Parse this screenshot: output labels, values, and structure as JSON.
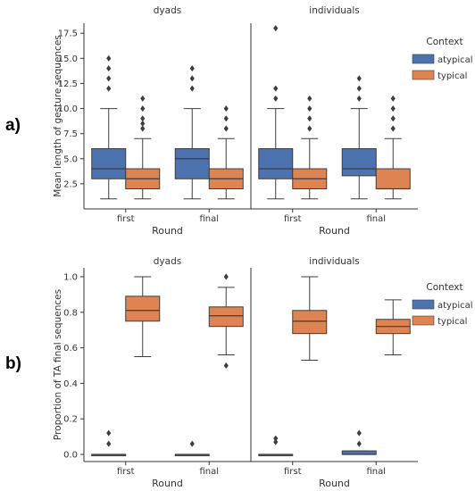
{
  "figure": {
    "letters": [
      "a)",
      "b)"
    ],
    "palette": {
      "atypical": "#4c72b0",
      "typical": "#dd8452",
      "edge": "#3d3d3d"
    }
  },
  "chart_data": [
    {
      "type": "box",
      "panel_label": "a)",
      "facets": [
        "dyads",
        "individuals"
      ],
      "categories": [
        "first",
        "final"
      ],
      "xlabel": "Round",
      "ylabel": "Mean length of gesture sequences",
      "ylim": [
        0,
        18.5
      ],
      "yticks": [
        "2.5",
        "5.0",
        "7.5",
        "10.0",
        "12.5",
        "15.0",
        "17.5"
      ],
      "legend": {
        "title": "Context",
        "entries": [
          "atypical",
          "typical"
        ],
        "placement": "right"
      },
      "series": [
        {
          "name": "atypical",
          "boxes": [
            {
              "facet": "dyads",
              "category": "first",
              "whislo": 1,
              "q1": 3,
              "med": 4,
              "q3": 6,
              "whishi": 10,
              "fliers": [
                12,
                13,
                14,
                15
              ]
            },
            {
              "facet": "dyads",
              "category": "final",
              "whislo": 1,
              "q1": 3,
              "med": 5,
              "q3": 6,
              "whishi": 10,
              "fliers": [
                12,
                13,
                14
              ]
            },
            {
              "facet": "individuals",
              "category": "first",
              "whislo": 1,
              "q1": 3,
              "med": 4,
              "q3": 6,
              "whishi": 10,
              "fliers": [
                11,
                12,
                18
              ]
            },
            {
              "facet": "individuals",
              "category": "final",
              "whislo": 1,
              "q1": 3.3,
              "med": 4,
              "q3": 6,
              "whishi": 10,
              "fliers": [
                11,
                12,
                13
              ]
            }
          ]
        },
        {
          "name": "typical",
          "boxes": [
            {
              "facet": "dyads",
              "category": "first",
              "whislo": 1,
              "q1": 2,
              "med": 3,
              "q3": 4,
              "whishi": 7,
              "fliers": [
                8,
                8.5,
                9,
                10,
                11
              ]
            },
            {
              "facet": "dyads",
              "category": "final",
              "whislo": 1,
              "q1": 2,
              "med": 3,
              "q3": 4,
              "whishi": 7,
              "fliers": [
                8,
                9,
                10
              ]
            },
            {
              "facet": "individuals",
              "category": "first",
              "whislo": 1,
              "q1": 2,
              "med": 3,
              "q3": 4,
              "whishi": 7,
              "fliers": [
                8,
                9,
                10,
                11
              ]
            },
            {
              "facet": "individuals",
              "category": "final",
              "whislo": 1,
              "q1": 2,
              "med": 2,
              "q3": 4,
              "whishi": 7,
              "fliers": [
                8,
                9,
                10,
                11
              ]
            }
          ]
        }
      ]
    },
    {
      "type": "box",
      "panel_label": "b)",
      "facets": [
        "dyads",
        "individuals"
      ],
      "categories": [
        "first",
        "final"
      ],
      "xlabel": "Round",
      "ylabel": "Proportion of TA final sequences",
      "ylim": [
        -0.04,
        1.05
      ],
      "yticks": [
        "0.0",
        "0.2",
        "0.4",
        "0.6",
        "0.8",
        "1.0"
      ],
      "legend": {
        "title": "Context",
        "entries": [
          "atypical",
          "typical"
        ],
        "placement": "right"
      },
      "series": [
        {
          "name": "atypical",
          "boxes": [
            {
              "facet": "dyads",
              "category": "first",
              "whislo": 0,
              "q1": 0,
              "med": 0,
              "q3": 0,
              "whishi": 0,
              "fliers": [
                0.06,
                0.12
              ]
            },
            {
              "facet": "dyads",
              "category": "final",
              "whislo": 0,
              "q1": 0,
              "med": 0,
              "q3": 0,
              "whishi": 0,
              "fliers": [
                0.06
              ]
            },
            {
              "facet": "individuals",
              "category": "first",
              "whislo": 0,
              "q1": 0,
              "med": 0,
              "q3": 0,
              "whishi": 0,
              "fliers": [
                0.07,
                0.09
              ]
            },
            {
              "facet": "individuals",
              "category": "final",
              "whislo": 0,
              "q1": 0,
              "med": 0,
              "q3": 0.02,
              "whishi": 0.02,
              "fliers": [
                0.06,
                0.12
              ]
            }
          ]
        },
        {
          "name": "typical",
          "boxes": [
            {
              "facet": "dyads",
              "category": "first",
              "whislo": 0.55,
              "q1": 0.75,
              "med": 0.81,
              "q3": 0.89,
              "whishi": 1.0,
              "fliers": []
            },
            {
              "facet": "dyads",
              "category": "final",
              "whislo": 0.56,
              "q1": 0.72,
              "med": 0.78,
              "q3": 0.83,
              "whishi": 0.94,
              "fliers": [
                0.5,
                1.0
              ]
            },
            {
              "facet": "individuals",
              "category": "first",
              "whislo": 0.53,
              "q1": 0.68,
              "med": 0.75,
              "q3": 0.81,
              "whishi": 1.0,
              "fliers": []
            },
            {
              "facet": "individuals",
              "category": "final",
              "whislo": 0.56,
              "q1": 0.68,
              "med": 0.72,
              "q3": 0.76,
              "whishi": 0.87,
              "fliers": []
            }
          ]
        }
      ]
    }
  ]
}
